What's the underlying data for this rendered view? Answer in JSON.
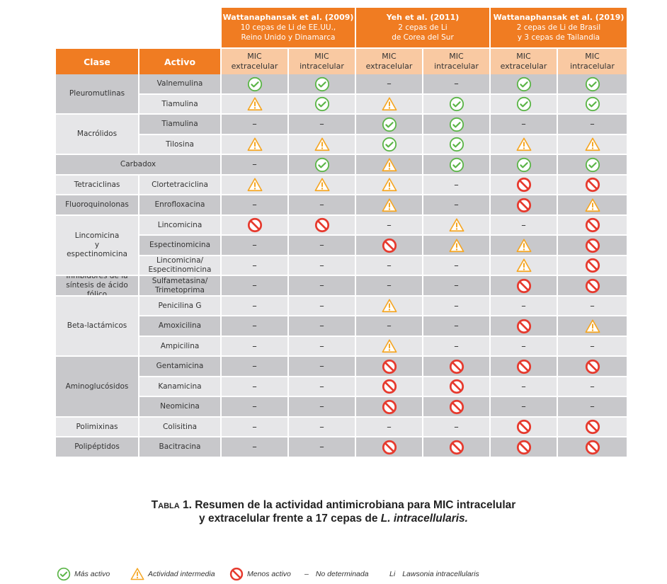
{
  "studies": [
    {
      "title": "Wattanaphansak et al. (2009)",
      "line2": "10 cepas de Li de EE.UU.,",
      "line3": "Reino Unido y Dinamarca"
    },
    {
      "title": "Yeh et al. (2011)",
      "line2": "2 cepas de Li",
      "line3": "de Corea del Sur"
    },
    {
      "title": "Wattanaphansak et al. (2019)",
      "line2": "2 cepas de Li de Brasil",
      "line3": "y 3 cepas de Tailandia"
    }
  ],
  "headers": {
    "clase": "Clase",
    "activo": "Activo"
  },
  "mic_labels": [
    {
      "top": "MIC",
      "bottom": "extracelular"
    },
    {
      "top": "MIC",
      "bottom": "intracelular"
    },
    {
      "top": "MIC",
      "bottom": "extracelular"
    },
    {
      "top": "MIC",
      "bottom": "intracelular"
    },
    {
      "top": "MIC",
      "bottom": "extracelular"
    },
    {
      "top": "MIC",
      "bottom": "intracelular"
    }
  ],
  "groups": [
    {
      "clase": "Pleuromutlinas",
      "rows": 2
    },
    {
      "clase": "Macrólidos",
      "rows": 2
    },
    {
      "clase": "Carbadox",
      "rows": 1,
      "span": true
    },
    {
      "clase": "Tetraciclinas",
      "rows": 1
    },
    {
      "clase": "Fluoroquinolonas",
      "rows": 1
    },
    {
      "clase": "Lincomicina\ny\nespectinomicina",
      "rows": 3
    },
    {
      "clase": "Inhibidores de la\nsíntesis de ácido fólico",
      "rows": 1
    },
    {
      "clase": "Beta-lactámicos",
      "rows": 3
    },
    {
      "clase": "Aminoglucósidos",
      "rows": 3
    },
    {
      "clase": "Polimixinas",
      "rows": 1
    },
    {
      "clase": "Polipéptidos",
      "rows": 1
    }
  ],
  "rows": [
    {
      "activo": "Valnemulina",
      "values": [
        "C",
        "C",
        "-",
        "-",
        "C",
        "C"
      ]
    },
    {
      "activo": "Tiamulina",
      "values": [
        "W",
        "C",
        "W",
        "C",
        "C",
        "C"
      ]
    },
    {
      "activo": "Tiamulina",
      "values": [
        "-",
        "-",
        "C",
        "C",
        "-",
        "-"
      ]
    },
    {
      "activo": "Tilosina",
      "values": [
        "W",
        "W",
        "C",
        "C",
        "W",
        "W"
      ]
    },
    {
      "activo": "",
      "values": [
        "-",
        "C",
        "W",
        "C",
        "C",
        "C"
      ]
    },
    {
      "activo": "Clortetraciclina",
      "values": [
        "W",
        "W",
        "W",
        "-",
        "N",
        "N"
      ]
    },
    {
      "activo": "Enrofloxacina",
      "values": [
        "-",
        "-",
        "W",
        "-",
        "N",
        "W"
      ]
    },
    {
      "activo": "Lincomicina",
      "values": [
        "N",
        "N",
        "-",
        "W",
        "-",
        "N"
      ]
    },
    {
      "activo": "Espectinomicina",
      "values": [
        "-",
        "-",
        "N",
        "W",
        "W",
        "N"
      ]
    },
    {
      "activo": "Lincomicina/\nEspecitinomicina",
      "values": [
        "-",
        "-",
        "-",
        "-",
        "W",
        "N"
      ]
    },
    {
      "activo": "Sulfametasina/\nTrimetoprima",
      "values": [
        "-",
        "-",
        "-",
        "-",
        "N",
        "N"
      ]
    },
    {
      "activo": "Penicilina G",
      "values": [
        "-",
        "-",
        "W",
        "-",
        "-",
        "-"
      ]
    },
    {
      "activo": "Amoxicilina",
      "values": [
        "-",
        "-",
        "-",
        "-",
        "N",
        "W"
      ]
    },
    {
      "activo": "Ampicilina",
      "values": [
        "-",
        "-",
        "W",
        "-",
        "-",
        "-"
      ]
    },
    {
      "activo": "Gentamicina",
      "values": [
        "-",
        "-",
        "N",
        "N",
        "N",
        "N"
      ]
    },
    {
      "activo": "Kanamicina",
      "values": [
        "-",
        "-",
        "N",
        "N",
        "-",
        "-"
      ]
    },
    {
      "activo": "Neomicina",
      "values": [
        "-",
        "-",
        "N",
        "N",
        "-",
        "-"
      ]
    },
    {
      "activo": "Colisitina",
      "values": [
        "-",
        "-",
        "-",
        "-",
        "N",
        "N"
      ]
    },
    {
      "activo": "Bacitracina",
      "values": [
        "-",
        "-",
        "N",
        "N",
        "N",
        "N"
      ]
    }
  ],
  "caption": {
    "prefix": "Tabla 1.",
    "line1": "Resumen de la actividad antimicrobiana para MIC intracelular",
    "line2_a": "y extracelular frente a 17 cepas de ",
    "line2_b": "L. intracellularis."
  },
  "legend": {
    "check": "Más activo",
    "warn": "Actividad intermedia",
    "no": "Menos activo",
    "dash_symbol": "–",
    "dash": "No determinada",
    "li_symbol": "Li",
    "li": "Lawsonia intracellularis"
  },
  "colors": {
    "orange": "#f07c22",
    "peach": "#f9c9a2",
    "green": "#5bb547",
    "amber": "#f5a623",
    "red": "#e63a2e",
    "grey": "#c8c8cb",
    "light": "#e6e6e8"
  }
}
